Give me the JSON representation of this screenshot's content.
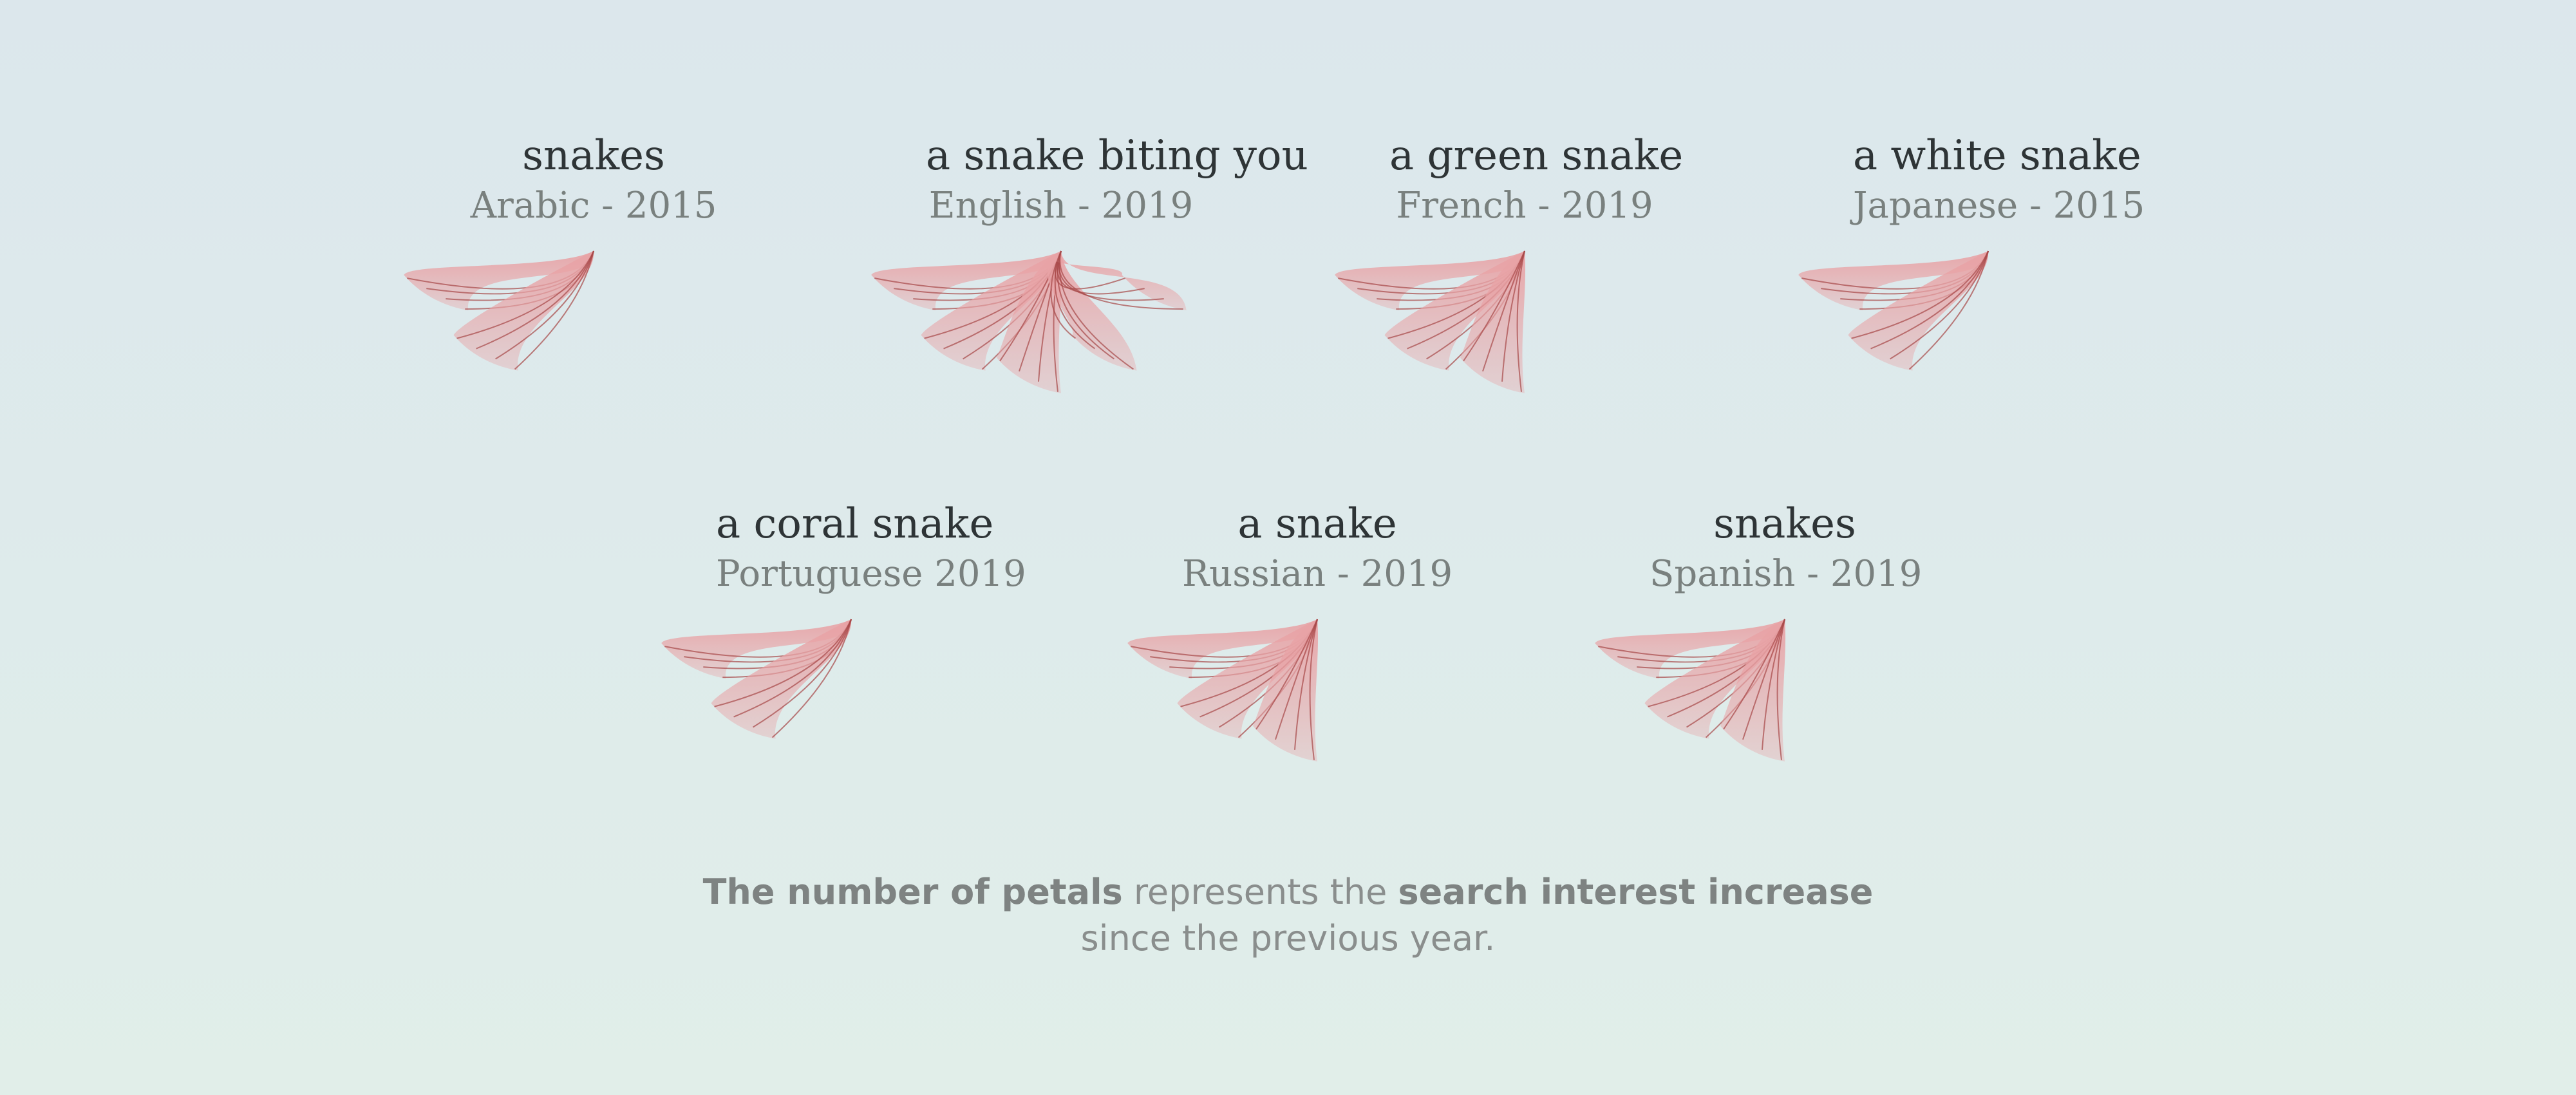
{
  "chart_data": {
    "type": "petal-glyph",
    "items": [
      {
        "dream": "snakes",
        "meta": "Arabic - 2015",
        "petals": 2
      },
      {
        "dream": "a snake biting you",
        "meta": "English - 2019",
        "petals": 5
      },
      {
        "dream": "a green snake",
        "meta": "French - 2019",
        "petals": 3
      },
      {
        "dream": "a white snake",
        "meta": "Japanese - 2015",
        "petals": 2
      },
      {
        "dream": "a coral snake",
        "meta": "Portuguese  2019",
        "petals": 2
      },
      {
        "dream": "a snake",
        "meta": "Russian - 2019",
        "petals": 3
      },
      {
        "dream": "snakes",
        "meta": "Spanish - 2019",
        "petals": 3
      }
    ],
    "caption": {
      "part1": "The number of petals",
      "part2": " represents the ",
      "part3": "search interest increase",
      "part4": "since the previous year."
    },
    "colors": {
      "petal": "#e8a3a6",
      "vein": "#a64747",
      "title": "#2e3436",
      "subtitle": "#79807e"
    }
  }
}
